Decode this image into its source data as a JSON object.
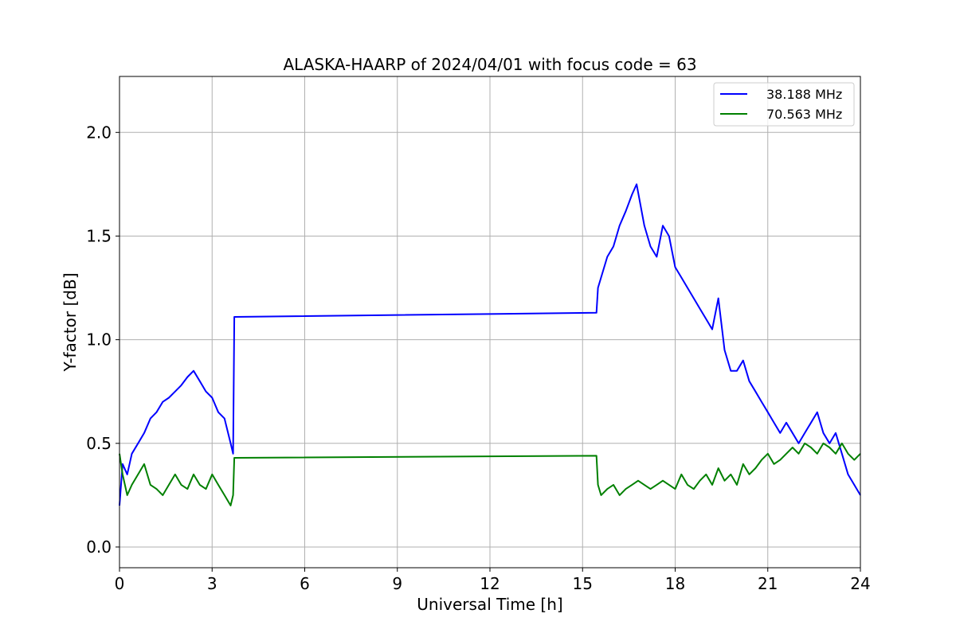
{
  "chart_data": {
    "type": "line",
    "title": "ALASKA-HAARP of 2024/04/01 with focus code = 63",
    "xlabel": "Universal Time [h]",
    "ylabel": "Y-factor [dB]",
    "xlim": [
      0,
      24
    ],
    "ylim": [
      -0.1,
      2.27
    ],
    "xticks": [
      0,
      3,
      6,
      9,
      12,
      15,
      18,
      21,
      24
    ],
    "xtick_labels": [
      "0",
      "3",
      "6",
      "9",
      "12",
      "15",
      "18",
      "21",
      "24"
    ],
    "yticks": [
      0.0,
      0.5,
      1.0,
      1.5,
      2.0
    ],
    "ytick_labels": [
      "0.0",
      "0.5",
      "1.0",
      "1.5",
      "2.0"
    ],
    "grid": true,
    "legend": "top-right",
    "series": [
      {
        "name": "38.188 MHz",
        "color": "#0000ff",
        "x": [
          0.0,
          0.1,
          0.25,
          0.4,
          0.6,
          0.8,
          1.0,
          1.2,
          1.4,
          1.6,
          1.8,
          2.0,
          2.2,
          2.4,
          2.6,
          2.8,
          3.0,
          3.2,
          3.4,
          3.6,
          3.68,
          3.72,
          15.45,
          15.5,
          15.6,
          15.8,
          16.0,
          16.2,
          16.4,
          16.6,
          16.75,
          17.0,
          17.2,
          17.4,
          17.6,
          17.8,
          18.0,
          18.2,
          18.4,
          18.6,
          18.8,
          19.0,
          19.2,
          19.4,
          19.6,
          19.8,
          20.0,
          20.2,
          20.4,
          20.6,
          20.8,
          21.0,
          21.2,
          21.4,
          21.6,
          21.8,
          22.0,
          22.2,
          22.4,
          22.6,
          22.8,
          23.0,
          23.2,
          23.4,
          23.6,
          23.8,
          24.0
        ],
        "y": [
          0.2,
          0.4,
          0.35,
          0.45,
          0.5,
          0.55,
          0.62,
          0.65,
          0.7,
          0.72,
          0.75,
          0.78,
          0.82,
          0.85,
          0.8,
          0.75,
          0.72,
          0.65,
          0.62,
          0.5,
          0.45,
          1.11,
          1.13,
          1.25,
          1.3,
          1.4,
          1.45,
          1.55,
          1.62,
          1.7,
          1.75,
          1.55,
          1.45,
          1.4,
          1.55,
          1.5,
          1.35,
          1.3,
          1.25,
          1.2,
          1.15,
          1.1,
          1.05,
          1.2,
          0.95,
          0.85,
          0.85,
          0.9,
          0.8,
          0.75,
          0.7,
          0.65,
          0.6,
          0.55,
          0.6,
          0.55,
          0.5,
          0.55,
          0.6,
          0.65,
          0.55,
          0.5,
          0.55,
          0.45,
          0.35,
          0.3,
          0.25
        ]
      },
      {
        "name": "70.563 MHz",
        "color": "#008000",
        "x": [
          0.0,
          0.1,
          0.25,
          0.4,
          0.6,
          0.8,
          1.0,
          1.2,
          1.4,
          1.6,
          1.8,
          2.0,
          2.2,
          2.4,
          2.6,
          2.8,
          3.0,
          3.2,
          3.4,
          3.6,
          3.68,
          3.72,
          15.45,
          15.5,
          15.6,
          15.8,
          16.0,
          16.2,
          16.4,
          16.6,
          16.8,
          17.0,
          17.2,
          17.4,
          17.6,
          17.8,
          18.0,
          18.2,
          18.4,
          18.6,
          18.8,
          19.0,
          19.2,
          19.4,
          19.6,
          19.8,
          20.0,
          20.2,
          20.4,
          20.6,
          20.8,
          21.0,
          21.2,
          21.4,
          21.6,
          21.8,
          22.0,
          22.2,
          22.4,
          22.6,
          22.8,
          23.0,
          23.2,
          23.4,
          23.6,
          23.8,
          24.0
        ],
        "y": [
          0.45,
          0.35,
          0.25,
          0.3,
          0.35,
          0.4,
          0.3,
          0.28,
          0.25,
          0.3,
          0.35,
          0.3,
          0.28,
          0.35,
          0.3,
          0.28,
          0.35,
          0.3,
          0.25,
          0.2,
          0.25,
          0.43,
          0.44,
          0.3,
          0.25,
          0.28,
          0.3,
          0.25,
          0.28,
          0.3,
          0.32,
          0.3,
          0.28,
          0.3,
          0.32,
          0.3,
          0.28,
          0.35,
          0.3,
          0.28,
          0.32,
          0.35,
          0.3,
          0.38,
          0.32,
          0.35,
          0.3,
          0.4,
          0.35,
          0.38,
          0.42,
          0.45,
          0.4,
          0.42,
          0.45,
          0.48,
          0.45,
          0.5,
          0.48,
          0.45,
          0.5,
          0.48,
          0.45,
          0.5,
          0.45,
          0.42,
          0.45
        ]
      }
    ]
  }
}
